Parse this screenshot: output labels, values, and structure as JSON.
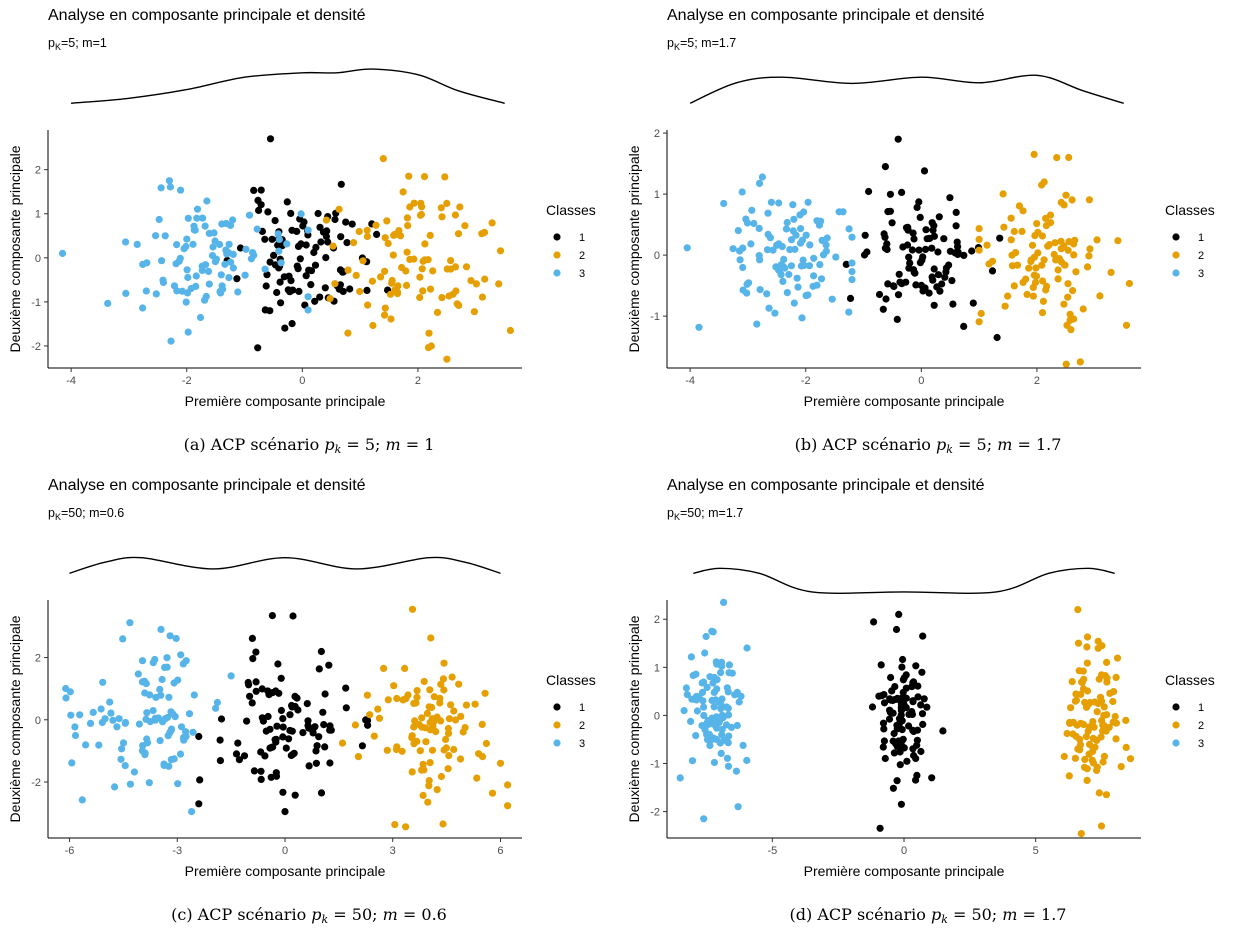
{
  "palette": {
    "1": "#000000",
    "2": "#E69F00",
    "3": "#56B4E9"
  },
  "chart_data": [
    {
      "type": "scatter",
      "title": "Analyse en composante principale et densité",
      "subtitle": {
        "base": "p",
        "sub": "K",
        "rest": "=5; m=1"
      },
      "xlabel": "Première composante principale",
      "ylabel": "Deuxième composante principale",
      "legend_title": "Classes",
      "legend_position": "right",
      "grid": false,
      "xlim": [
        -4.4,
        3.8
      ],
      "ylim": [
        -2.5,
        2.9
      ],
      "xticks": [
        -4,
        -2,
        0,
        2
      ],
      "xtick_labels": [
        "-4",
        "-2",
        "0",
        "2"
      ],
      "yticks": [
        -2,
        -1,
        0,
        1,
        2
      ],
      "ytick_labels": [
        "-2",
        "-1",
        "0",
        "1",
        "2"
      ],
      "density": {
        "x": [
          -4.0,
          -3.0,
          -2.0,
          -1.0,
          0.0,
          0.6,
          1.2,
          2.0,
          2.7,
          3.5
        ],
        "y": [
          0.0,
          0.08,
          0.22,
          0.42,
          0.49,
          0.49,
          0.55,
          0.46,
          0.2,
          0.0
        ]
      },
      "clusters": [
        {
          "class": "1",
          "n": 100,
          "cx": 0.0,
          "cy": -0.05,
          "sx": 0.55,
          "sy": 0.7,
          "seed": 11,
          "range": [
            -1.4,
            1.5
          ]
        },
        {
          "class": "2",
          "n": 100,
          "cx": 1.9,
          "cy": -0.05,
          "sx": 0.65,
          "sy": 0.8,
          "seed": 12,
          "range": [
            0.4,
            3.8
          ]
        },
        {
          "class": "3",
          "n": 100,
          "cx": -1.9,
          "cy": 0.05,
          "sx": 0.8,
          "sy": 0.7,
          "seed": 13,
          "range": [
            -4.2,
            0.1
          ]
        }
      ],
      "extra_points": [
        {
          "class": "1",
          "x": -0.55,
          "y": 2.7
        },
        {
          "class": "3",
          "x": -4.15,
          "y": 0.1
        },
        {
          "class": "3",
          "x": -2.3,
          "y": 1.75
        },
        {
          "class": "2",
          "x": 3.6,
          "y": -1.65
        },
        {
          "class": "2",
          "x": 2.5,
          "y": -2.3
        },
        {
          "class": "2",
          "x": 1.4,
          "y": 2.25
        }
      ],
      "legend": [
        {
          "label": "1",
          "class": "1"
        },
        {
          "label": "2",
          "class": "2"
        },
        {
          "label": "3",
          "class": "3"
        }
      ],
      "caption": {
        "prefix": "(a)  ACP scénario ",
        "p": "p",
        "k": "k",
        "eq1": " = 5; ",
        "m": "m",
        "eq2": " = 1"
      }
    },
    {
      "type": "scatter",
      "title": "Analyse en composante principale et densité",
      "subtitle": {
        "base": "p",
        "sub": "K",
        "rest": "=5; m=1.7"
      },
      "xlabel": "Première composante principale",
      "ylabel": "Deuxième composante principale",
      "legend_title": "Classes",
      "legend_position": "right",
      "grid": false,
      "xlim": [
        -4.4,
        3.8
      ],
      "ylim": [
        -1.85,
        2.05
      ],
      "xticks": [
        -4,
        -2,
        0,
        2
      ],
      "xtick_labels": [
        "-4",
        "-2",
        "0",
        "2"
      ],
      "yticks": [
        -1,
        0,
        1,
        2
      ],
      "ytick_labels": [
        "-1",
        "0",
        "1",
        "2"
      ],
      "density": {
        "x": [
          -4.0,
          -3.2,
          -2.4,
          -1.2,
          0.0,
          1.0,
          2.0,
          2.8,
          3.5
        ],
        "y": [
          0.0,
          0.33,
          0.42,
          0.32,
          0.42,
          0.33,
          0.45,
          0.2,
          0.0
        ]
      },
      "clusters": [
        {
          "class": "1",
          "n": 100,
          "cx": -0.05,
          "cy": 0.0,
          "sx": 0.55,
          "sy": 0.55,
          "seed": 21,
          "range": [
            -1.3,
            1.4
          ]
        },
        {
          "class": "2",
          "n": 100,
          "cx": 2.05,
          "cy": 0.05,
          "sx": 0.55,
          "sy": 0.55,
          "seed": 22,
          "range": [
            1.0,
            3.6
          ]
        },
        {
          "class": "3",
          "n": 100,
          "cx": -2.3,
          "cy": 0.05,
          "sx": 0.6,
          "sy": 0.55,
          "seed": 23,
          "range": [
            -4.1,
            -1.2
          ]
        }
      ],
      "extra_points": [
        {
          "class": "1",
          "x": -0.4,
          "y": 1.9
        },
        {
          "class": "3",
          "x": -4.05,
          "y": 0.12
        },
        {
          "class": "3",
          "x": -2.75,
          "y": 1.28
        },
        {
          "class": "2",
          "x": 2.75,
          "y": -1.75
        },
        {
          "class": "2",
          "x": 3.55,
          "y": -1.15
        },
        {
          "class": "2",
          "x": 1.95,
          "y": 1.65
        },
        {
          "class": "2",
          "x": 2.55,
          "y": 1.6
        }
      ],
      "legend": [
        {
          "label": "1",
          "class": "1"
        },
        {
          "label": "2",
          "class": "2"
        },
        {
          "label": "3",
          "class": "3"
        }
      ],
      "caption": {
        "prefix": "(b)  ACP scénario ",
        "p": "p",
        "k": "k",
        "eq1": " = 5; ",
        "m": "m",
        "eq2": " = 1.7"
      }
    },
    {
      "type": "scatter",
      "title": "Analyse en composante principale et densité",
      "subtitle": {
        "base": "p",
        "sub": "K",
        "rest": "=50; m=0.6"
      },
      "xlabel": "Première composante principale",
      "ylabel": "Deuxième composante principale",
      "legend_title": "Classes",
      "legend_position": "right",
      "grid": false,
      "xlim": [
        -6.6,
        6.6
      ],
      "ylim": [
        -3.8,
        3.85
      ],
      "xticks": [
        -6,
        -3,
        0,
        3,
        6
      ],
      "xtick_labels": [
        "-6",
        "-3",
        "0",
        "3",
        "6"
      ],
      "yticks": [
        -2,
        0,
        2
      ],
      "ytick_labels": [
        "-2",
        "0",
        "2"
      ],
      "density": {
        "x": [
          -6.0,
          -5.0,
          -4.0,
          -2.0,
          0.0,
          2.0,
          4.0,
          5.0,
          6.0
        ],
        "y": [
          0.0,
          0.18,
          0.25,
          0.07,
          0.25,
          0.07,
          0.25,
          0.18,
          0.0
        ]
      },
      "clusters": [
        {
          "class": "1",
          "n": 100,
          "cx": -0.1,
          "cy": -0.1,
          "sx": 0.95,
          "sy": 1.1,
          "seed": 31,
          "range": [
            -2.4,
            2.3
          ]
        },
        {
          "class": "2",
          "n": 100,
          "cx": 4.0,
          "cy": -0.1,
          "sx": 0.9,
          "sy": 1.15,
          "seed": 32,
          "range": [
            1.6,
            6.2
          ]
        },
        {
          "class": "3",
          "n": 100,
          "cx": -3.9,
          "cy": 0.1,
          "sx": 1.0,
          "sy": 1.15,
          "seed": 33,
          "range": [
            -6.2,
            -1.5
          ]
        }
      ],
      "extra_points": [
        {
          "class": "1",
          "x": -0.35,
          "y": 3.35
        },
        {
          "class": "1",
          "x": 0.0,
          "y": -2.95
        },
        {
          "class": "2",
          "x": 3.55,
          "y": 3.55
        },
        {
          "class": "2",
          "x": 4.4,
          "y": -3.35
        },
        {
          "class": "2",
          "x": 6.0,
          "y": -1.4
        },
        {
          "class": "3",
          "x": -6.1,
          "y": 0.7
        },
        {
          "class": "3",
          "x": -3.2,
          "y": 2.7
        },
        {
          "class": "3",
          "x": -2.6,
          "y": -2.95
        }
      ],
      "legend": [
        {
          "label": "1",
          "class": "1"
        },
        {
          "label": "2",
          "class": "2"
        },
        {
          "label": "3",
          "class": "3"
        }
      ],
      "caption": {
        "prefix": "(c)  ACP scénario ",
        "p": "p",
        "k": "k",
        "eq1": " = 50; ",
        "m": "m",
        "eq2": " = 0.6"
      }
    },
    {
      "type": "scatter",
      "title": "Analyse en composante principale et densité",
      "subtitle": {
        "base": "p",
        "sub": "K",
        "rest": "=50; m=1.7"
      },
      "xlabel": "Première composante principale",
      "ylabel": "Deuxième composante principale",
      "legend_title": "Classes",
      "legend_position": "right",
      "grid": false,
      "xlim": [
        -9.0,
        9.0
      ],
      "ylim": [
        -2.55,
        2.4
      ],
      "xticks": [
        -5,
        0,
        5
      ],
      "xtick_labels": [
        "-5",
        "0",
        "5"
      ],
      "yticks": [
        -2,
        -1,
        0,
        1,
        2
      ],
      "ytick_labels": [
        "-2",
        "-1",
        "0",
        "1",
        "2"
      ],
      "density": {
        "x": [
          -8.0,
          -7.0,
          -5.5,
          -3.5,
          0.0,
          3.5,
          5.5,
          7.0,
          8.0
        ],
        "y": [
          0.0,
          0.08,
          0.0,
          -0.3,
          -0.3,
          -0.3,
          0.0,
          0.08,
          0.0
        ]
      },
      "clusters": [
        {
          "class": "1",
          "n": 100,
          "cx": 0.0,
          "cy": 0.0,
          "sx": 0.45,
          "sy": 0.7,
          "seed": 41,
          "range": [
            -1.5,
            1.6
          ]
        },
        {
          "class": "2",
          "n": 100,
          "cx": 7.1,
          "cy": 0.0,
          "sx": 0.55,
          "sy": 0.75,
          "seed": 42,
          "range": [
            5.2,
            8.7
          ]
        },
        {
          "class": "3",
          "n": 100,
          "cx": -7.2,
          "cy": 0.0,
          "sx": 0.55,
          "sy": 0.75,
          "seed": 43,
          "range": [
            -8.6,
            -5.8
          ]
        }
      ],
      "extra_points": [
        {
          "class": "1",
          "x": -0.2,
          "y": 2.1
        },
        {
          "class": "1",
          "x": -0.1,
          "y": -1.85
        },
        {
          "class": "2",
          "x": 6.6,
          "y": 2.2
        },
        {
          "class": "2",
          "x": 7.5,
          "y": -2.3
        },
        {
          "class": "2",
          "x": 8.6,
          "y": -0.9
        },
        {
          "class": "3",
          "x": -6.3,
          "y": -1.9
        },
        {
          "class": "3",
          "x": -7.3,
          "y": 1.75
        },
        {
          "class": "3",
          "x": -8.5,
          "y": -1.3
        }
      ],
      "legend": [
        {
          "label": "1",
          "class": "1"
        },
        {
          "label": "2",
          "class": "2"
        },
        {
          "label": "3",
          "class": "3"
        }
      ],
      "caption": {
        "prefix": "(d)  ACP scénario ",
        "p": "p",
        "k": "k",
        "eq1": " = 50; ",
        "m": "m",
        "eq2": " = 1.7"
      }
    }
  ]
}
